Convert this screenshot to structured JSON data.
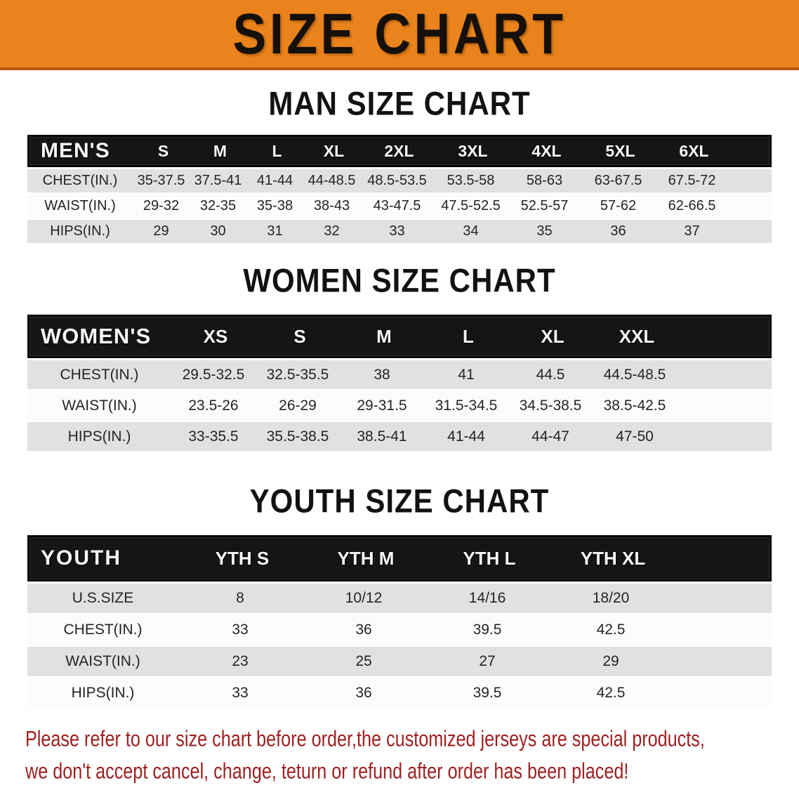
{
  "banner": {
    "title": "SIZE CHART",
    "bg_color": "#ea831c",
    "text_color": "#16100a"
  },
  "colors": {
    "table_header_bg": "#151515",
    "table_header_text": "#f7f7f7",
    "row_stripe_bg": "#e1e1e1",
    "row_plain_bg": "#fcfcfc",
    "disclaimer_text": "#9e1f1f"
  },
  "sections": [
    {
      "heading": "MAN SIZE CHART",
      "table": {
        "label": "MEN'S",
        "columns": [
          "S",
          "M",
          "L",
          "XL",
          "2XL",
          "3XL",
          "4XL",
          "5XL",
          "6XL"
        ],
        "rows": [
          {
            "label": "CHEST(IN.)",
            "values": [
              "35-37.5",
              "37.5-41",
              "41-44",
              "44-48.5",
              "48.5-53.5",
              "53.5-58",
              "58-63",
              "63-67.5",
              "67.5-72"
            ]
          },
          {
            "label": "WAIST(IN.)",
            "values": [
              "29-32",
              "32-35",
              "35-38",
              "38-43",
              "43-47.5",
              "47.5-52.5",
              "52.5-57",
              "57-62",
              "62-66.5"
            ]
          },
          {
            "label": "HIPS(IN.)",
            "values": [
              "29",
              "30",
              "31",
              "32",
              "33",
              "34",
              "35",
              "36",
              "37"
            ]
          }
        ]
      }
    },
    {
      "heading": "WOMEN SIZE CHART",
      "table": {
        "label": "WOMEN'S",
        "columns": [
          "XS",
          "S",
          "M",
          "L",
          "XL",
          "XXL"
        ],
        "rows": [
          {
            "label": "CHEST(IN.)",
            "values": [
              "29.5-32.5",
              "32.5-35.5",
              "38",
              "41",
              "44.5",
              "44.5-48.5"
            ]
          },
          {
            "label": "WAIST(IN.)",
            "values": [
              "23.5-26",
              "26-29",
              "29-31.5",
              "31.5-34.5",
              "34.5-38.5",
              "38.5-42.5"
            ]
          },
          {
            "label": "HIPS(IN.)",
            "values": [
              "33-35.5",
              "35.5-38.5",
              "38.5-41",
              "41-44",
              "44-47",
              "47-50"
            ]
          }
        ]
      }
    },
    {
      "heading": "YOUTH SIZE CHART",
      "table": {
        "label": "YOUTH",
        "columns": [
          "YTH S",
          "YTH M",
          "YTH L",
          "YTH XL"
        ],
        "rows": [
          {
            "label": "U.S.SIZE",
            "values": [
              "8",
              "10/12",
              "14/16",
              "18/20"
            ]
          },
          {
            "label": "CHEST(IN.)",
            "values": [
              "33",
              "36",
              "39.5",
              "42.5"
            ]
          },
          {
            "label": "WAIST(IN.)",
            "values": [
              "23",
              "25",
              "27",
              "29"
            ]
          },
          {
            "label": "HIPS(IN.)",
            "values": [
              "33",
              "36",
              "39.5",
              "42.5"
            ]
          }
        ]
      }
    }
  ],
  "disclaimer": {
    "line1": "Please refer to our size chart before order,the customized jerseys are special products,",
    "line2": "we don't accept cancel, change, teturn or refund after order has been placed!"
  }
}
